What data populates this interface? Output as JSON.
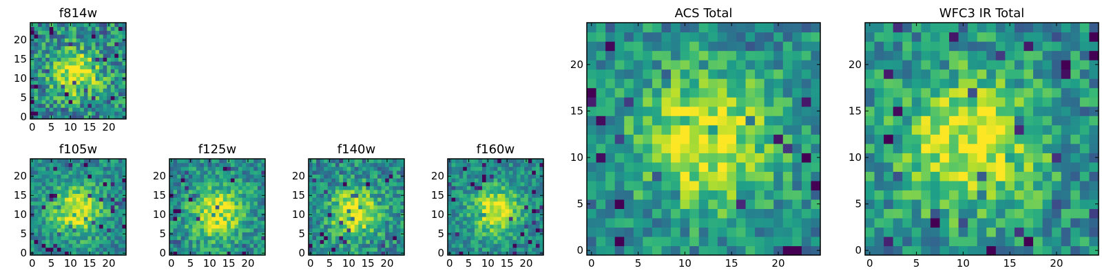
{
  "chart_data": [
    {
      "type": "heatmap",
      "title": "f814w",
      "xlim": [
        0,
        25
      ],
      "ylim": [
        0,
        25
      ],
      "xticks": [
        0,
        5,
        10,
        15,
        20
      ],
      "yticks": [
        0,
        5,
        10,
        15,
        20
      ],
      "center": [
        11.5,
        11.5
      ],
      "spread": 4.2,
      "noise": 0.32,
      "seed": 11,
      "colormap": "viridis"
    },
    {
      "type": "heatmap",
      "title": "f105w",
      "xlim": [
        0,
        25
      ],
      "ylim": [
        0,
        25
      ],
      "xticks": [
        0,
        5,
        10,
        15,
        20
      ],
      "yticks": [
        0,
        5,
        10,
        15,
        20
      ],
      "center": [
        11.5,
        11
      ],
      "spread": 4.6,
      "noise": 0.22,
      "seed": 23,
      "colormap": "viridis"
    },
    {
      "type": "heatmap",
      "title": "f125w",
      "xlim": [
        0,
        25
      ],
      "ylim": [
        0,
        25
      ],
      "xticks": [
        0,
        5,
        10,
        15,
        20
      ],
      "yticks": [
        0,
        5,
        10,
        15,
        20
      ],
      "center": [
        12,
        10.5
      ],
      "spread": 4.8,
      "noise": 0.24,
      "seed": 37,
      "colormap": "viridis"
    },
    {
      "type": "heatmap",
      "title": "f140w",
      "xlim": [
        0,
        25
      ],
      "ylim": [
        0,
        25
      ],
      "xticks": [
        0,
        5,
        10,
        15,
        20
      ],
      "yticks": [
        0,
        5,
        10,
        15,
        20
      ],
      "center": [
        11.5,
        10.5
      ],
      "spread": 4.4,
      "noise": 0.26,
      "seed": 51,
      "colormap": "viridis"
    },
    {
      "type": "heatmap",
      "title": "f160w",
      "xlim": [
        0,
        25
      ],
      "ylim": [
        0,
        25
      ],
      "xticks": [
        0,
        5,
        10,
        15,
        20
      ],
      "yticks": [
        0,
        5,
        10,
        15,
        20
      ],
      "center": [
        12,
        11
      ],
      "spread": 4.4,
      "noise": 0.2,
      "seed": 67,
      "colormap": "viridis"
    },
    {
      "type": "heatmap",
      "title": "ACS Total",
      "xlim": [
        0,
        25
      ],
      "ylim": [
        0,
        25
      ],
      "xticks": [
        0,
        5,
        10,
        15,
        20
      ],
      "yticks": [
        0,
        5,
        10,
        15,
        20
      ],
      "center": [
        12.5,
        12
      ],
      "spread": 5.2,
      "noise": 0.24,
      "seed": 83,
      "colormap": "viridis"
    },
    {
      "type": "heatmap",
      "title": "WFC3 IR Total",
      "xlim": [
        0,
        25
      ],
      "ylim": [
        0,
        25
      ],
      "xticks": [
        0,
        5,
        10,
        15,
        20
      ],
      "yticks": [
        0,
        5,
        10,
        15,
        20
      ],
      "center": [
        11,
        11.5
      ],
      "spread": 5.2,
      "noise": 0.26,
      "seed": 97,
      "colormap": "viridis"
    }
  ]
}
